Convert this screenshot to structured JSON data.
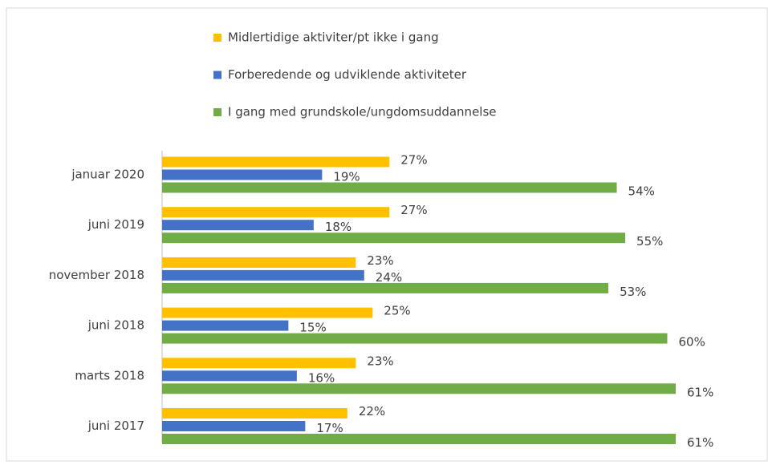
{
  "chart_data": {
    "type": "bar",
    "orientation": "horizontal",
    "categories": [
      "januar 2020",
      "juni 2019",
      "november 2018",
      "juni 2018",
      "marts 2018",
      "juni 2017"
    ],
    "series": [
      {
        "name": "Midlertidige aktiviter/pt ikke i gang",
        "color": "#FFC000",
        "values": [
          27,
          27,
          23,
          25,
          23,
          22
        ],
        "value_labels": [
          "27%",
          "27%",
          "23%",
          "25%",
          "23%",
          "22%"
        ]
      },
      {
        "name": "Forberedende og udviklende aktiviteter",
        "color": "#4472C4",
        "values": [
          19,
          18,
          24,
          15,
          16,
          17
        ],
        "value_labels": [
          "19%",
          "18%",
          "24%",
          "15%",
          "16%",
          "17%"
        ]
      },
      {
        "name": "I gang med grundskole/ungdomsuddannelse",
        "color": "#70AD47",
        "values": [
          54,
          55,
          53,
          60,
          61,
          61
        ],
        "value_labels": [
          "54%",
          "55%",
          "53%",
          "60%",
          "61%",
          "61%"
        ]
      }
    ],
    "legend": "top"
  }
}
